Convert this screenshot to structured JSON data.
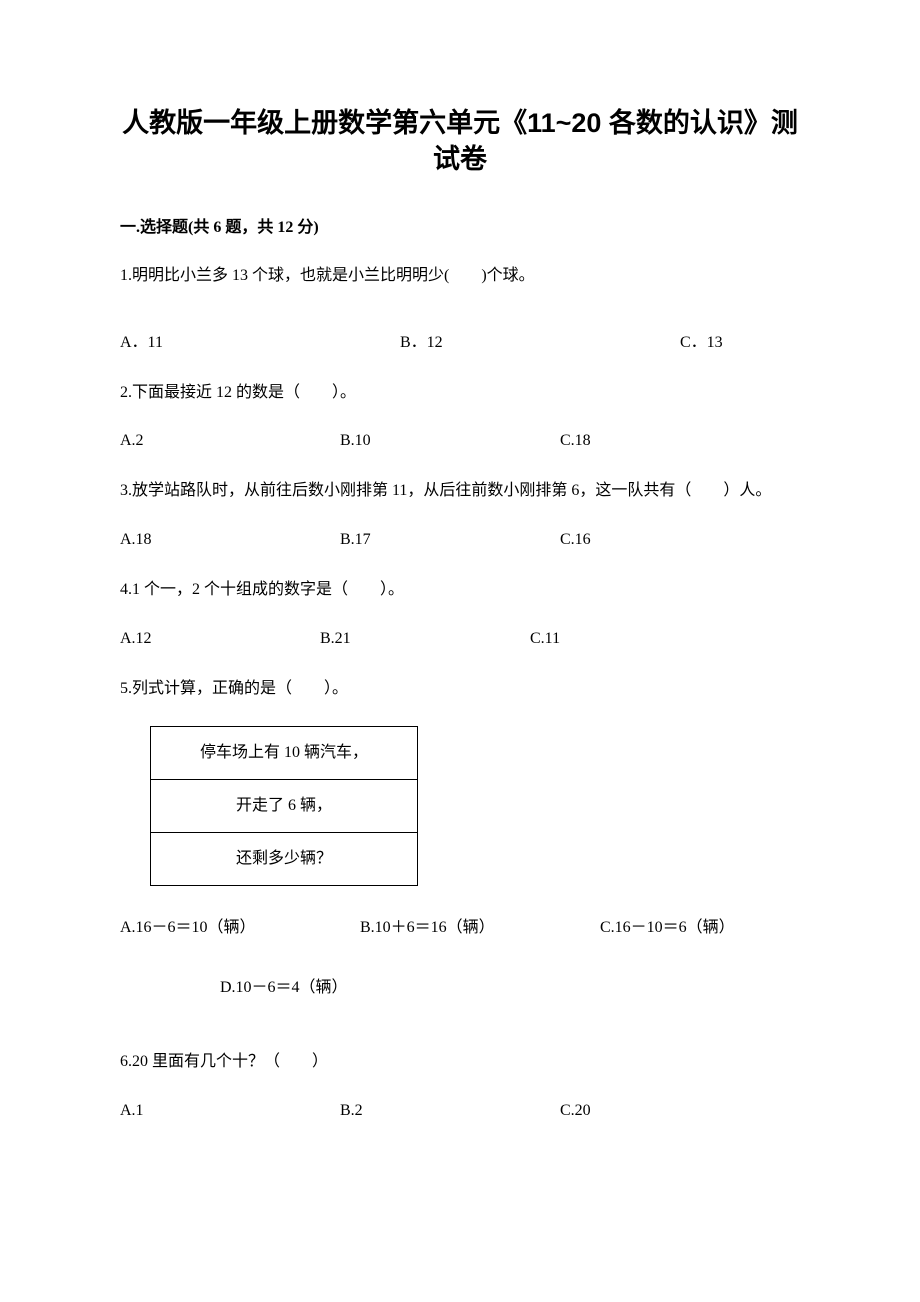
{
  "title": "人教版一年级上册数学第六单元《11~20 各数的认识》测试卷",
  "section1": {
    "header": "一.选择题(共 6 题，共 12 分)"
  },
  "q1": {
    "text": "1.明明比小兰多 13 个球，也就是小兰比明明少(　　)个球。",
    "a": "A．11",
    "b": "B．12",
    "c": "C．13"
  },
  "q2": {
    "text": "2.下面最接近 12 的数是（　　）。",
    "a": "A.2",
    "b": "B.10",
    "c": "C.18"
  },
  "q3": {
    "text": "3.放学站路队时，从前往后数小刚排第 11，从后往前数小刚排第 6，这一队共有（　　）人。",
    "a": "A.18",
    "b": "B.17",
    "c": "C.16"
  },
  "q4": {
    "text": "4.1 个一，2 个十组成的数字是（　　）。",
    "a": "A.12",
    "b": "B.21",
    "c": "C.11"
  },
  "q5": {
    "text": "5.列式计算，正确的是（　　）。",
    "table": {
      "row1": "停车场上有 10 辆汽车，",
      "row2": "开走了 6 辆，",
      "row3": "还剩多少辆？"
    },
    "a": "A.16－6＝10（辆）",
    "b": "B.10＋6＝16（辆）",
    "c": "C.16－10＝6（辆）",
    "d": "D.10－6＝4（辆）"
  },
  "q6": {
    "text": "6.20 里面有几个十？（　　）",
    "a": "A.1",
    "b": "B.2",
    "c": "C.20"
  }
}
